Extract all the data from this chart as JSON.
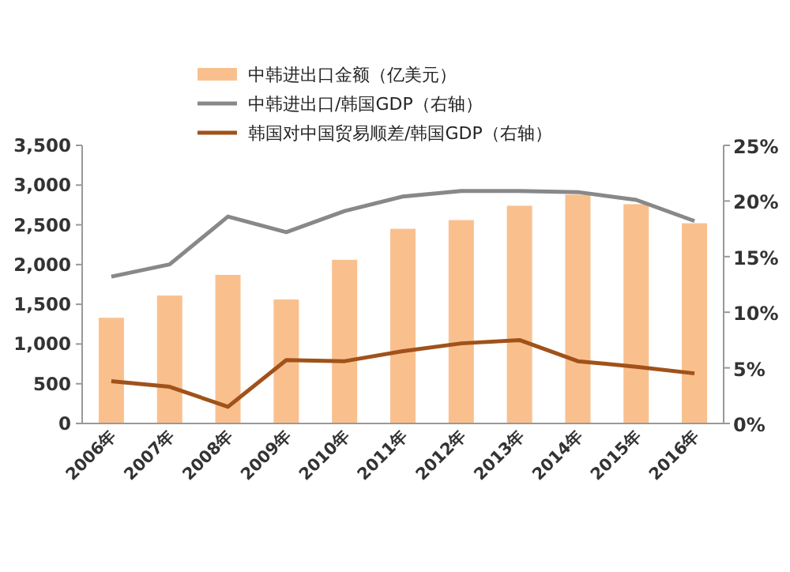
{
  "chart_data": {
    "type": "bar",
    "categories": [
      "2006年",
      "2007年",
      "2008年",
      "2009年",
      "2010年",
      "2011年",
      "2012年",
      "2013年",
      "2014年",
      "2015年",
      "2016年"
    ],
    "series": [
      {
        "name": "中韩进出口金额（亿美元）",
        "color": "#f9c08e",
        "values": [
          1330,
          1610,
          1870,
          1560,
          2060,
          2450,
          2560,
          2740,
          2880,
          2760,
          2520
        ]
      },
      {
        "name": "中韩进出口/韩国GDP（右轴）",
        "type": "line",
        "axis": "y2",
        "color": "#888888",
        "values": [
          13.2,
          14.3,
          18.6,
          17.2,
          19.1,
          20.4,
          20.9,
          20.9,
          20.8,
          20.1,
          18.2
        ]
      },
      {
        "name": "韩国对中国贸易顺差/韩国GDP（右轴）",
        "type": "line",
        "axis": "y2",
        "color": "#a0521a",
        "values": [
          3.8,
          3.3,
          1.5,
          5.7,
          5.6,
          6.5,
          7.2,
          7.5,
          5.6,
          5.1,
          4.5
        ]
      }
    ],
    "ylim": [
      0,
      3500
    ],
    "yticks": [
      0,
      {
        "value": 500,
        "label": "500"
      },
      {
        "value": 1000,
        "label": "1,000"
      },
      {
        "value": 1500,
        "label": "1,500"
      },
      {
        "value": 2000,
        "label": "2,000"
      },
      {
        "value": 2500,
        "label": "2,500"
      },
      {
        "value": 3000,
        "label": "3,000"
      },
      {
        "value": 3500,
        "label": "3,500"
      }
    ],
    "y2lim": [
      0,
      25
    ],
    "y2ticks": [
      {
        "value": 0,
        "label": "0%"
      },
      {
        "value": 5,
        "label": "5%"
      },
      {
        "value": 10,
        "label": "10%"
      },
      {
        "value": 15,
        "label": "15%"
      },
      {
        "value": 20,
        "label": "20%"
      },
      {
        "value": 25,
        "label": "25%"
      }
    ],
    "legend": "top",
    "grid": false,
    "marker": "none"
  }
}
